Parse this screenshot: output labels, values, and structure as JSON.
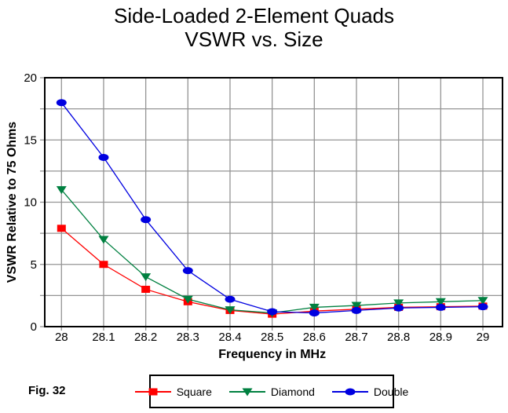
{
  "title": {
    "line1": "Side-Loaded 2-Element Quads",
    "line2": "VSWR vs. Size"
  },
  "figure_caption": "Fig. 32",
  "colors": {
    "background": "#FFFFFF",
    "axis_frame": "#000000",
    "gridline": "#949494",
    "text": "#000000"
  },
  "chart_data": {
    "type": "line",
    "title": "Side-Loaded 2-Element Quads VSWR vs. Size",
    "xlabel": "Frequency in MHz",
    "ylabel": "VSWR Relative to 75 Ohms",
    "xlim": [
      28,
      29
    ],
    "ylim": [
      0,
      20
    ],
    "grid": true,
    "x_grid_interval": 0.1,
    "y_grid_interval": 2.5,
    "y_major_tick_interval": 5,
    "legend_position": "bottom",
    "x": [
      28.0,
      28.1,
      28.2,
      28.3,
      28.4,
      28.5,
      28.6,
      28.7,
      28.8,
      28.9,
      29.0
    ],
    "x_tick_labels": [
      "28",
      "28.1",
      "28.2",
      "28.3",
      "28.4",
      "28.5",
      "28.6",
      "28.7",
      "28.8",
      "28.9",
      "29"
    ],
    "y_tick_labels": [
      "0",
      "5",
      "10",
      "15",
      "20"
    ],
    "series": [
      {
        "name": "Square",
        "marker": "square",
        "color": "#FF0000",
        "values": [
          7.9,
          5.0,
          3.0,
          2.0,
          1.3,
          1.0,
          1.25,
          1.4,
          1.55,
          1.6,
          1.65
        ]
      },
      {
        "name": "Diamond",
        "marker": "triangle-down",
        "color": "#008040",
        "values": [
          11.0,
          7.0,
          4.0,
          2.2,
          1.35,
          1.1,
          1.55,
          1.7,
          1.9,
          2.0,
          2.1
        ]
      },
      {
        "name": "Double",
        "marker": "circle",
        "color": "#0000E0",
        "values": [
          18.0,
          13.6,
          8.6,
          4.5,
          2.2,
          1.2,
          1.1,
          1.3,
          1.5,
          1.55,
          1.6
        ]
      }
    ]
  }
}
